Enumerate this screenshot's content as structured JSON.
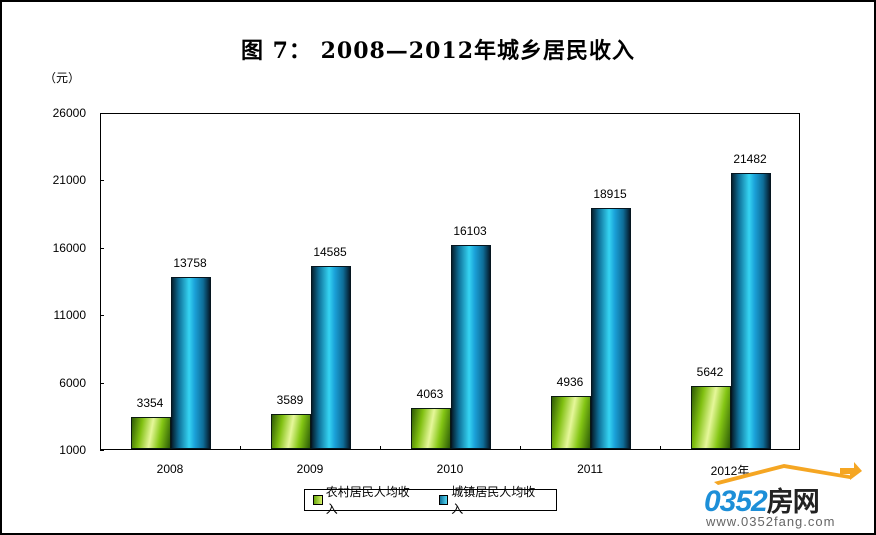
{
  "title": "图  7：    2008—2012年城乡居民收入",
  "unit_label": "（元）",
  "colors": {
    "rural": "#7fbf10",
    "urban": "#1aa0d8"
  },
  "legend": [
    {
      "label": "农村居民人均收入",
      "color": "#7fbf10"
    },
    {
      "label": "城镇居民人均收入",
      "color": "#1aa0d8"
    }
  ],
  "watermark": {
    "brand": "0352",
    "brand_cn": "房网",
    "url": "www.0352fang.com"
  },
  "chart_data": {
    "type": "bar",
    "title": "图 7： 2008—2012年城乡居民收入",
    "xlabel": "",
    "ylabel": "（元）",
    "categories": [
      "2008",
      "2009",
      "2010",
      "2011",
      "2012年"
    ],
    "series": [
      {
        "name": "农村居民人均收入",
        "values": [
          3354,
          3589,
          4063,
          4936,
          5642
        ]
      },
      {
        "name": "城镇居民人均收入",
        "values": [
          13758,
          14585,
          16103,
          18915,
          21482
        ]
      }
    ],
    "yticks": [
      1000,
      6000,
      11000,
      16000,
      21000,
      26000
    ],
    "ylim": [
      1000,
      26000
    ],
    "grid": false,
    "legend_position": "bottom"
  }
}
